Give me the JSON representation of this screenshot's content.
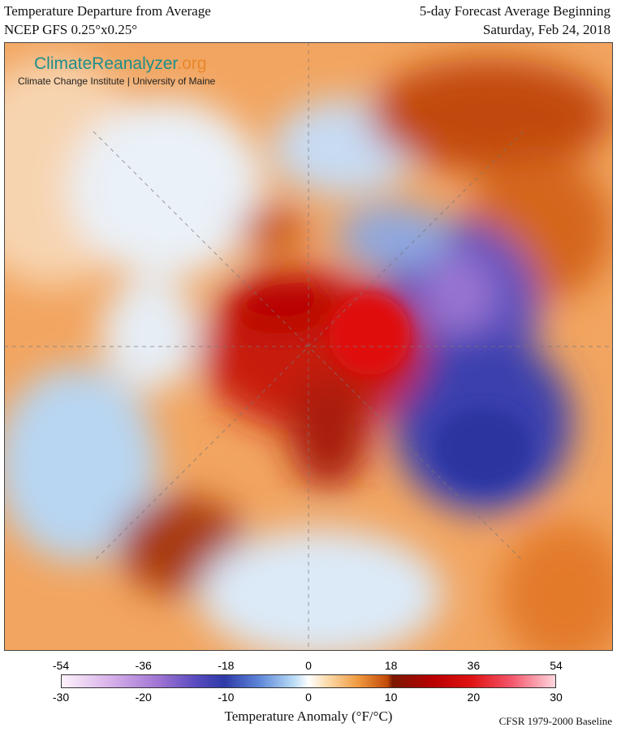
{
  "header": {
    "title_left": [
      "Temperature Departure from Average",
      "NCEP GFS 0.25°x0.25°"
    ],
    "title_right": [
      "5-day Forecast Average Beginning",
      "Saturday, Feb 24, 2018"
    ]
  },
  "logo": {
    "name": "ClimateReanalyzer",
    "domain": ".org",
    "subtitle": "Climate Change Institute | University of Maine"
  },
  "colorbar": {
    "fahrenheit_ticks": [
      -54,
      -36,
      -18,
      0,
      18,
      36,
      54
    ],
    "celsius_ticks": [
      -30,
      -20,
      -10,
      0,
      10,
      20,
      30
    ],
    "label": "Temperature Anomaly (°F/°C)"
  },
  "footer": {
    "baseline": "CFSR 1979-2000 Baseline"
  }
}
